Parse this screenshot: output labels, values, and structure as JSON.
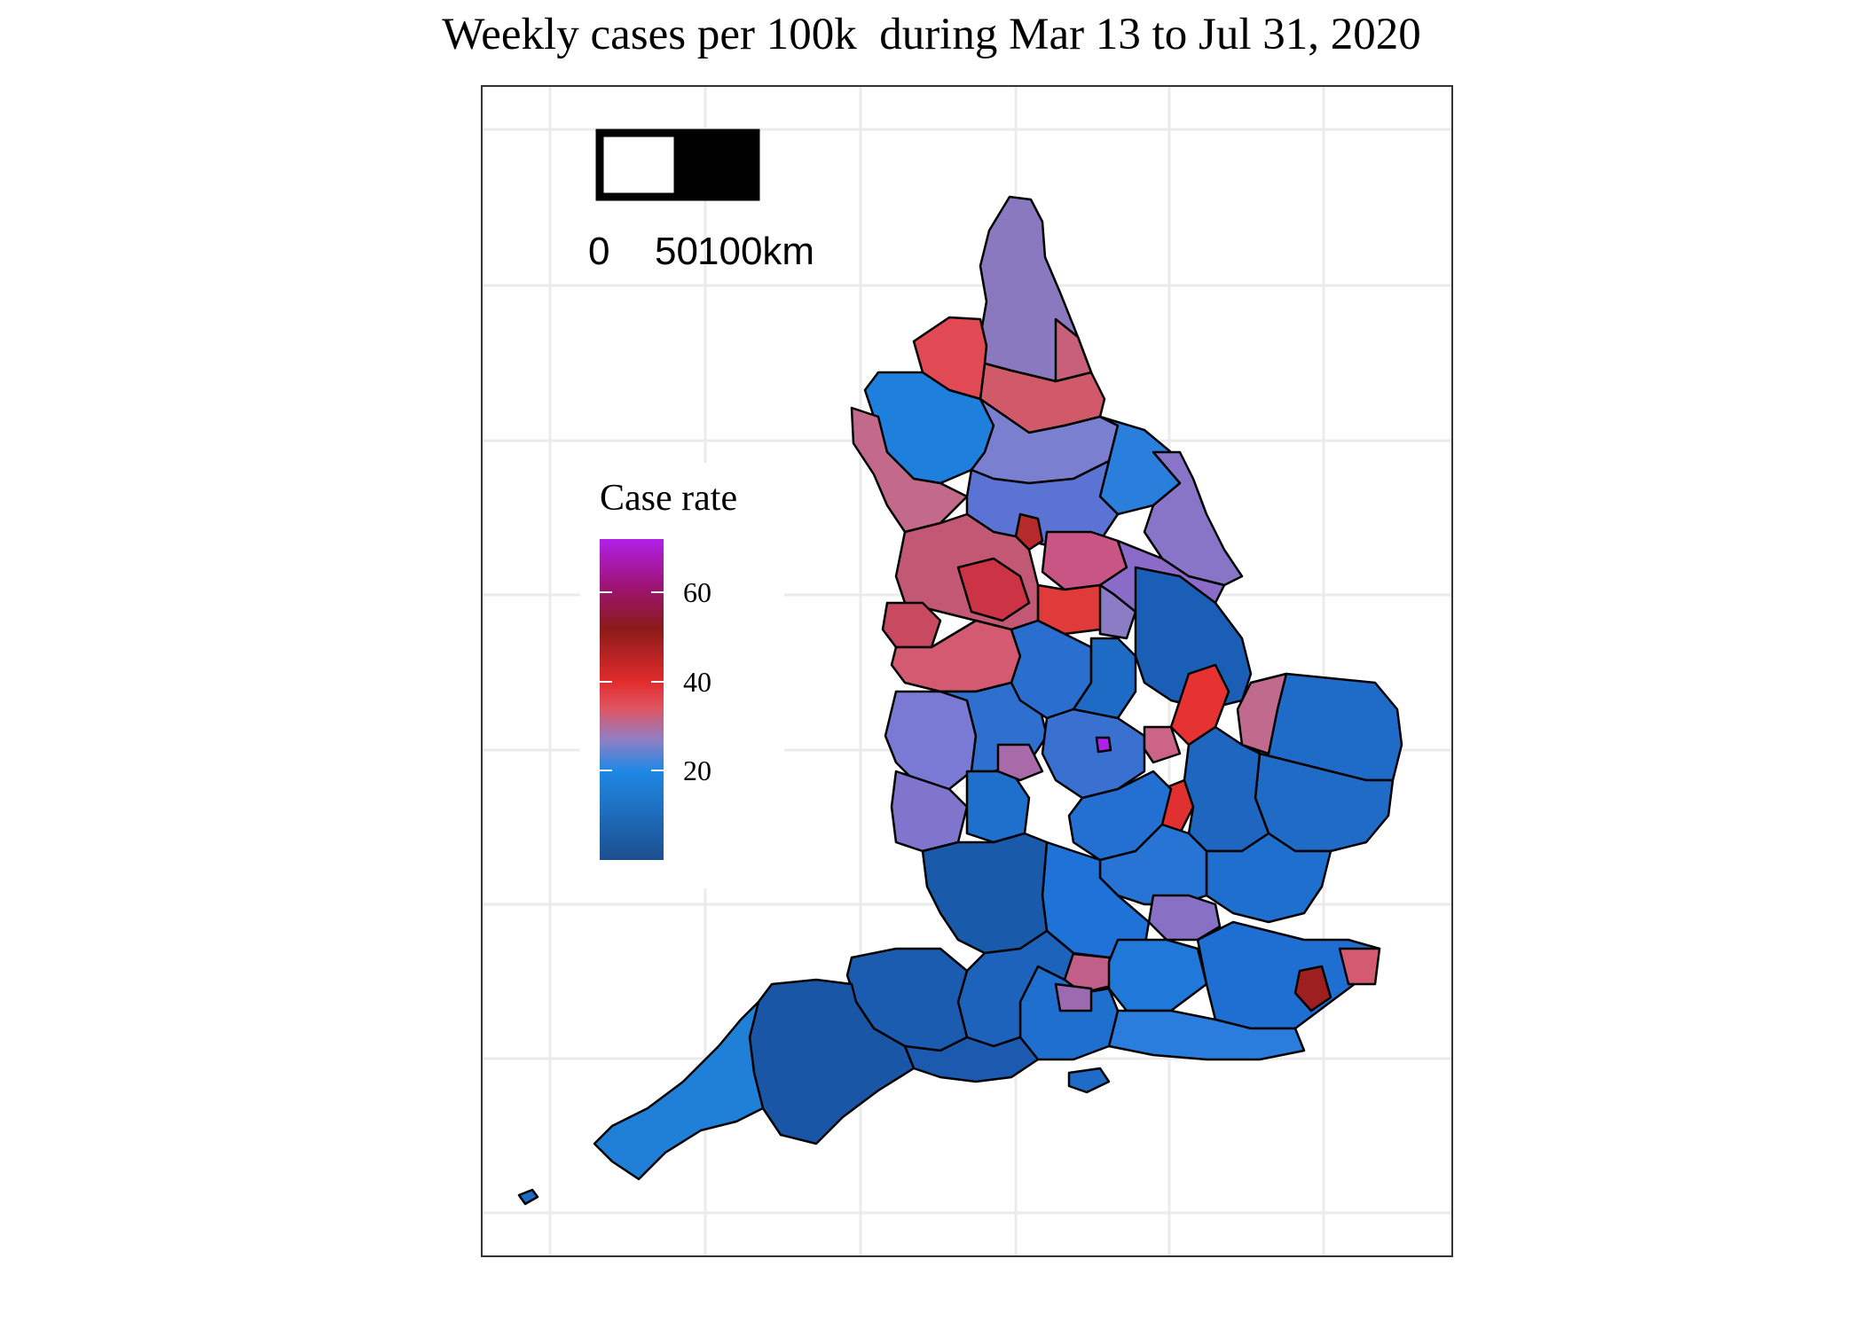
{
  "map": {
    "title": "Weekly cases per 100k  during Mar 13 to Jul 31, 2020",
    "scalebar": {
      "labels": [
        "0",
        "50",
        "100km"
      ]
    },
    "legend": {
      "title": "Case rate",
      "ticks": [
        {
          "value": 20,
          "label": "20"
        },
        {
          "value": 40,
          "label": "40"
        },
        {
          "value": 60,
          "label": "60"
        }
      ],
      "domain": [
        0,
        72
      ],
      "color_stops": [
        {
          "value": 0,
          "color": "#1d4f8f"
        },
        {
          "value": 20,
          "color": "#1e88e5"
        },
        {
          "value": 27,
          "color": "#8f7fc4"
        },
        {
          "value": 34,
          "color": "#e05563"
        },
        {
          "value": 40,
          "color": "#e12c2c"
        },
        {
          "value": 52,
          "color": "#8b1a1a"
        },
        {
          "value": 62,
          "color": "#a0147c"
        },
        {
          "value": 72,
          "color": "#b020e8"
        }
      ]
    },
    "colors": {
      "grid": "#ebebeb",
      "panel_border": "#333333",
      "boundary": "#000000"
    }
  }
}
